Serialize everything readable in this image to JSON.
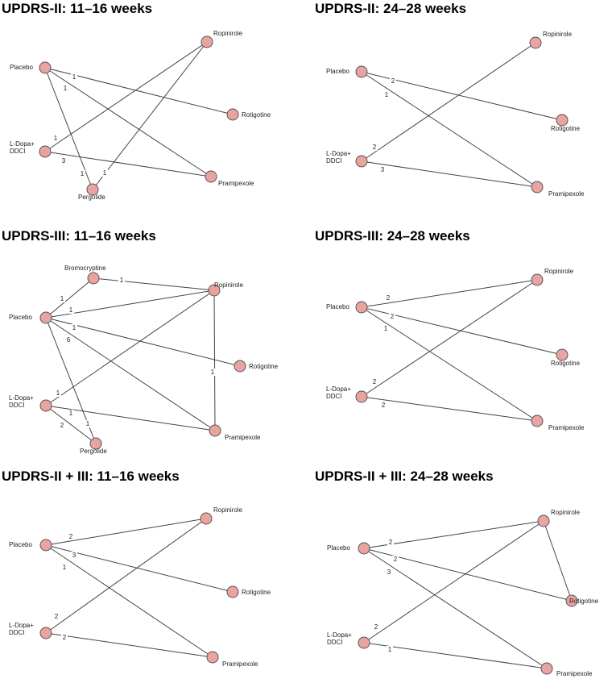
{
  "panels": [
    {
      "title": "UPDRS-II: 11–16 weeks",
      "nodes": [
        {
          "id": "placebo",
          "label": [
            "Placebo"
          ]
        },
        {
          "id": "ldopa",
          "label": [
            "L-Dopa+",
            "DDCI"
          ]
        },
        {
          "id": "pergolide",
          "label": [
            "Pergolide"
          ]
        },
        {
          "id": "ropinirole",
          "label": [
            "Ropinirole"
          ]
        },
        {
          "id": "rotigotine",
          "label": [
            "Rotigotine"
          ]
        },
        {
          "id": "pramipexole",
          "label": [
            "Pramipexole"
          ]
        }
      ],
      "edges": [
        {
          "from": "placebo",
          "to": "rotigotine",
          "label": "1"
        },
        {
          "from": "placebo",
          "to": "pramipexole",
          "label": "1"
        },
        {
          "from": "placebo",
          "to": "pergolide",
          "label": "1"
        },
        {
          "from": "ldopa",
          "to": "ropinirole",
          "label": "1"
        },
        {
          "from": "ldopa",
          "to": "pramipexole",
          "label": "3"
        },
        {
          "from": "pergolide",
          "to": "ropinirole",
          "label": "1"
        }
      ]
    },
    {
      "title": "UPDRS-II: 24–28 weeks",
      "nodes": [
        {
          "id": "placebo",
          "label": [
            "Placebo"
          ]
        },
        {
          "id": "ldopa",
          "label": [
            "L-Dopa+",
            "DDCI"
          ]
        },
        {
          "id": "ropinirole",
          "label": [
            "Ropinirole"
          ]
        },
        {
          "id": "rotigotine",
          "label": [
            "Rotigotine"
          ]
        },
        {
          "id": "pramipexole",
          "label": [
            "Pramipexole"
          ]
        }
      ],
      "edges": [
        {
          "from": "placebo",
          "to": "rotigotine",
          "label": "2"
        },
        {
          "from": "placebo",
          "to": "pramipexole",
          "label": "1"
        },
        {
          "from": "ldopa",
          "to": "ropinirole",
          "label": "2"
        },
        {
          "from": "ldopa",
          "to": "pramipexole",
          "label": "3"
        }
      ]
    },
    {
      "title": "UPDRS-III: 11–16 weeks",
      "nodes": [
        {
          "id": "bromocriptine",
          "label": [
            "Bromocryptine"
          ]
        },
        {
          "id": "placebo",
          "label": [
            "Placebo"
          ]
        },
        {
          "id": "ldopa",
          "label": [
            "L-Dopa+",
            "DDCI"
          ]
        },
        {
          "id": "pergolide",
          "label": [
            "Pergolide"
          ]
        },
        {
          "id": "ropinirole",
          "label": [
            "Ropinirole"
          ]
        },
        {
          "id": "rotigotine",
          "label": [
            "Rotigotine"
          ]
        },
        {
          "id": "pramipexole",
          "label": [
            "Pramipexole"
          ]
        }
      ],
      "edges": [
        {
          "from": "bromocriptine",
          "to": "ropinirole",
          "label": "1"
        },
        {
          "from": "placebo",
          "to": "bromocriptine",
          "label": "1"
        },
        {
          "from": "placebo",
          "to": "ropinirole",
          "label": "1"
        },
        {
          "from": "placebo",
          "to": "rotigotine",
          "label": "1"
        },
        {
          "from": "placebo",
          "to": "pramipexole",
          "label": "6"
        },
        {
          "from": "placebo",
          "to": "pergolide",
          "label": "1"
        },
        {
          "from": "ldopa",
          "to": "ropinirole",
          "label": "1"
        },
        {
          "from": "ldopa",
          "to": "pramipexole",
          "label": "1"
        },
        {
          "from": "ldopa",
          "to": "pergolide",
          "label": "2"
        },
        {
          "from": "ropinirole",
          "to": "pramipexole",
          "label": "1"
        }
      ]
    },
    {
      "title": "UPDRS-III: 24–28 weeks",
      "nodes": [
        {
          "id": "placebo",
          "label": [
            "Placebo"
          ]
        },
        {
          "id": "ldopa",
          "label": [
            "L-Dopa+",
            "DDCI"
          ]
        },
        {
          "id": "ropinirole",
          "label": [
            "Ropinirole"
          ]
        },
        {
          "id": "rotigotine",
          "label": [
            "Rotigotine"
          ]
        },
        {
          "id": "pramipexole",
          "label": [
            "Pramipexole"
          ]
        }
      ],
      "edges": [
        {
          "from": "placebo",
          "to": "ropinirole",
          "label": "2"
        },
        {
          "from": "placebo",
          "to": "rotigotine",
          "label": "2"
        },
        {
          "from": "placebo",
          "to": "pramipexole",
          "label": "1"
        },
        {
          "from": "ldopa",
          "to": "ropinirole",
          "label": "2"
        },
        {
          "from": "ldopa",
          "to": "pramipexole",
          "label": "2"
        }
      ]
    },
    {
      "title": "UPDRS-II + III: 11–16 weeks",
      "nodes": [
        {
          "id": "placebo",
          "label": [
            "Placebo"
          ]
        },
        {
          "id": "ldopa",
          "label": [
            "L-Dopa+",
            "DDCI"
          ]
        },
        {
          "id": "ropinirole",
          "label": [
            "Ropinirole"
          ]
        },
        {
          "id": "rotigotine",
          "label": [
            "Rotigotine"
          ]
        },
        {
          "id": "pramipexole",
          "label": [
            "Pramipexole"
          ]
        }
      ],
      "edges": [
        {
          "from": "placebo",
          "to": "ropinirole",
          "label": "2"
        },
        {
          "from": "placebo",
          "to": "rotigotine",
          "label": "3"
        },
        {
          "from": "placebo",
          "to": "pramipexole",
          "label": "1"
        },
        {
          "from": "ldopa",
          "to": "ropinirole",
          "label": "2"
        },
        {
          "from": "ldopa",
          "to": "pramipexole",
          "label": "2"
        }
      ]
    },
    {
      "title": "UPDRS-II + III: 24–28 weeks",
      "nodes": [
        {
          "id": "placebo",
          "label": [
            "Placebo"
          ]
        },
        {
          "id": "ldopa",
          "label": [
            "L-Dopa+",
            "DDCI"
          ]
        },
        {
          "id": "ropinirole",
          "label": [
            "Ropinirole"
          ]
        },
        {
          "id": "rotigotine",
          "label": [
            "Rotigotine"
          ]
        },
        {
          "id": "pramipexole",
          "label": [
            "Pramipexole"
          ]
        }
      ],
      "edges": [
        {
          "from": "placebo",
          "to": "ropinirole",
          "label": "2"
        },
        {
          "from": "placebo",
          "to": "rotigotine",
          "label": "2"
        },
        {
          "from": "placebo",
          "to": "pramipexole",
          "label": "3"
        },
        {
          "from": "ldopa",
          "to": "ropinirole",
          "label": "2"
        },
        {
          "from": "ldopa",
          "to": "pramipexole",
          "label": "1"
        },
        {
          "from": "ropinirole",
          "to": "rotigotine",
          "label": ""
        }
      ]
    }
  ]
}
